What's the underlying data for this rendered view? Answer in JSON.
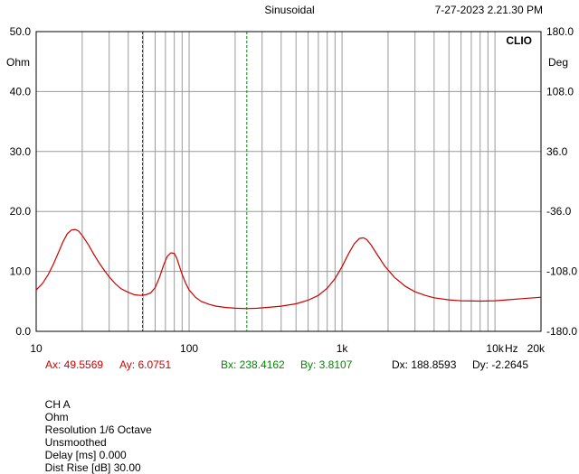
{
  "header": {
    "mode": "Sinusoidal",
    "timestamp": "7-27-2023 2.21.30 PM",
    "brand": "CLIO"
  },
  "chart_data": {
    "type": "line",
    "x_scale": "log",
    "xlim": [
      10,
      20000
    ],
    "ylim": [
      0,
      50
    ],
    "y2lim": [
      -180,
      180
    ],
    "ylabel": "Ohm",
    "y2label": "Deg",
    "grid": true,
    "y_ticks": [
      "0.0",
      "10.0",
      "20.0",
      "30.0",
      "40.0",
      "50.0"
    ],
    "y2_ticks": [
      "-180.0",
      "-108.0",
      "-36.0",
      "36.0",
      "108.0",
      "180.0"
    ],
    "x_ticks": [
      {
        "value": 10,
        "label": "10"
      },
      {
        "value": 100,
        "label": "100"
      },
      {
        "value": 1000,
        "label": "1k"
      },
      {
        "value": 10000,
        "label": "10k"
      },
      {
        "value": 20000,
        "label": "20k"
      }
    ],
    "x_unit": "Hz",
    "series": [
      {
        "color": "#cc0000",
        "x": [
          10,
          11,
          12,
          13,
          14,
          15,
          16,
          17,
          18,
          19,
          20,
          22,
          24,
          26,
          28,
          30,
          33,
          36,
          40,
          44,
          48,
          52,
          56,
          60,
          64,
          68,
          72,
          76,
          80,
          83,
          86,
          90,
          95,
          100,
          110,
          120,
          135,
          150,
          170,
          200,
          240,
          280,
          330,
          400,
          500,
          600,
          700,
          800,
          900,
          1000,
          1100,
          1200,
          1300,
          1380,
          1450,
          1550,
          1700,
          1900,
          2200,
          2600,
          3000,
          3500,
          4000,
          5000,
          6000,
          8000,
          10000,
          12000,
          15000,
          18000,
          20000
        ],
        "y": [
          6.9,
          8.0,
          9.5,
          11.3,
          13.2,
          15.0,
          16.3,
          16.9,
          17.0,
          16.7,
          16.0,
          14.4,
          12.7,
          11.3,
          10.1,
          9.1,
          7.9,
          7.1,
          6.5,
          6.1,
          6.0,
          6.1,
          6.4,
          7.3,
          9.0,
          11.0,
          12.5,
          13.1,
          13.0,
          12.2,
          11.0,
          9.5,
          8.0,
          6.9,
          5.7,
          5.0,
          4.5,
          4.2,
          4.0,
          3.85,
          3.8,
          3.85,
          4.0,
          4.2,
          4.6,
          5.2,
          6.0,
          7.2,
          8.8,
          10.8,
          12.9,
          14.6,
          15.5,
          15.6,
          15.3,
          14.4,
          12.8,
          10.9,
          9.0,
          7.5,
          6.6,
          6.0,
          5.6,
          5.25,
          5.1,
          5.05,
          5.1,
          5.25,
          5.45,
          5.6,
          5.7
        ]
      }
    ],
    "cursors": {
      "A": {
        "x": 49.5569,
        "color": "#cc0000"
      },
      "B": {
        "x": 238.4162,
        "color": "#008800"
      }
    }
  },
  "readout": {
    "ax": "Ax: 49.5569",
    "ay": "Ay: 6.0751",
    "bx": "Bx: 238.4162",
    "by": "By: 3.8107",
    "dx": "Dx: 188.8593",
    "dy": "Dy: -2.2645"
  },
  "status": {
    "channel": "CH A",
    "unit": "Ohm",
    "resolution": "Resolution 1/6 Octave",
    "smoothing": "Unsmoothed",
    "delay": "Delay [ms] 0.000",
    "dist_rise": "Dist Rise [dB] 30.00"
  }
}
